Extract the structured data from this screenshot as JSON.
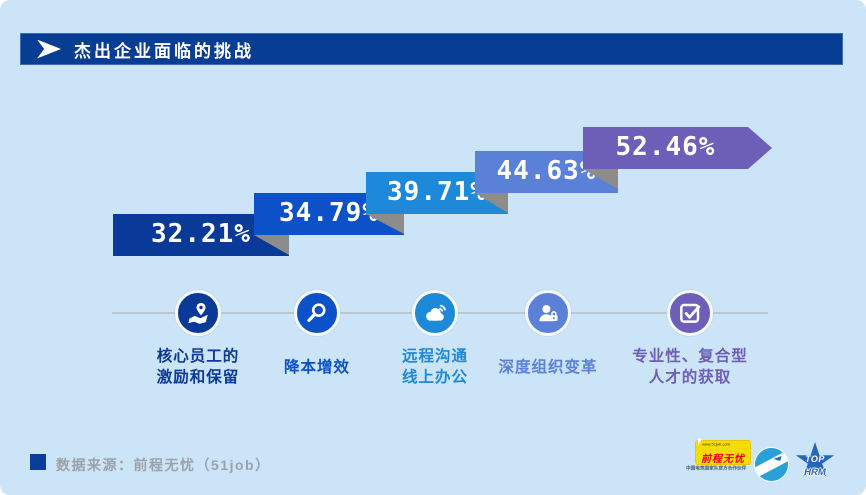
{
  "slide": {
    "background": "#cce4f7"
  },
  "title_bar": {
    "label": "杰出企业面临的挑战",
    "background": "#073e94",
    "icon": "chevron-right-icon"
  },
  "chart_data": {
    "type": "bar",
    "subtype": "stepped-ribbon",
    "title": "杰出企业面临的挑战",
    "categories": [
      "核心员工的激励和保留",
      "降本增效",
      "远程沟通线上办公",
      "深度组织变革",
      "专业性、复合型人才的获取"
    ],
    "values": [
      32.21,
      34.79,
      39.71,
      44.63,
      52.46
    ],
    "value_labels": [
      "32.21%",
      "34.79%",
      "39.71%",
      "44.63%",
      "52.46%"
    ],
    "bar_colors": [
      "#0a3a97",
      "#0c51c7",
      "#1e88d9",
      "#5b80d8",
      "#6d5eb7"
    ],
    "fold_color": "#8c8c8c",
    "legend_position": "bottom",
    "grid": false
  },
  "legend": {
    "connector_color": "#bcc6cf",
    "items": [
      {
        "icon": "map-pin-icon",
        "color": "#0a3a97",
        "lines": [
          "核心员工的",
          "激励和保留"
        ]
      },
      {
        "icon": "magnifier-icon",
        "color": "#0c51c7",
        "lines": [
          "降本增效"
        ]
      },
      {
        "icon": "cloud-signal-icon",
        "color": "#1e88d9",
        "lines": [
          "远程沟通",
          "线上办公"
        ]
      },
      {
        "icon": "user-lock-icon",
        "color": "#5b80d8",
        "lines": [
          "深度组织变革"
        ]
      },
      {
        "icon": "checkbox-check-icon",
        "color": "#6d5eb7",
        "lines": [
          "专业性、复合型",
          "人才的获取"
        ]
      }
    ]
  },
  "footer": {
    "bullet_color": "#0a3e96",
    "source_label": "数据来源：前程无忧（51job）"
  },
  "logos": {
    "job51": {
      "site_text": "www.51job.com",
      "name_text": "前程无忧",
      "partner_text": "中国电竞国家队官方合作伙伴",
      "box_color": "#f6dc00",
      "text_color": "#e8001c"
    },
    "globe_badge": {
      "color": "#2ba0d8"
    },
    "top_hrm": {
      "star_color": "#2566b8",
      "top_text": "TOP",
      "bottom_text": "HRM"
    }
  }
}
